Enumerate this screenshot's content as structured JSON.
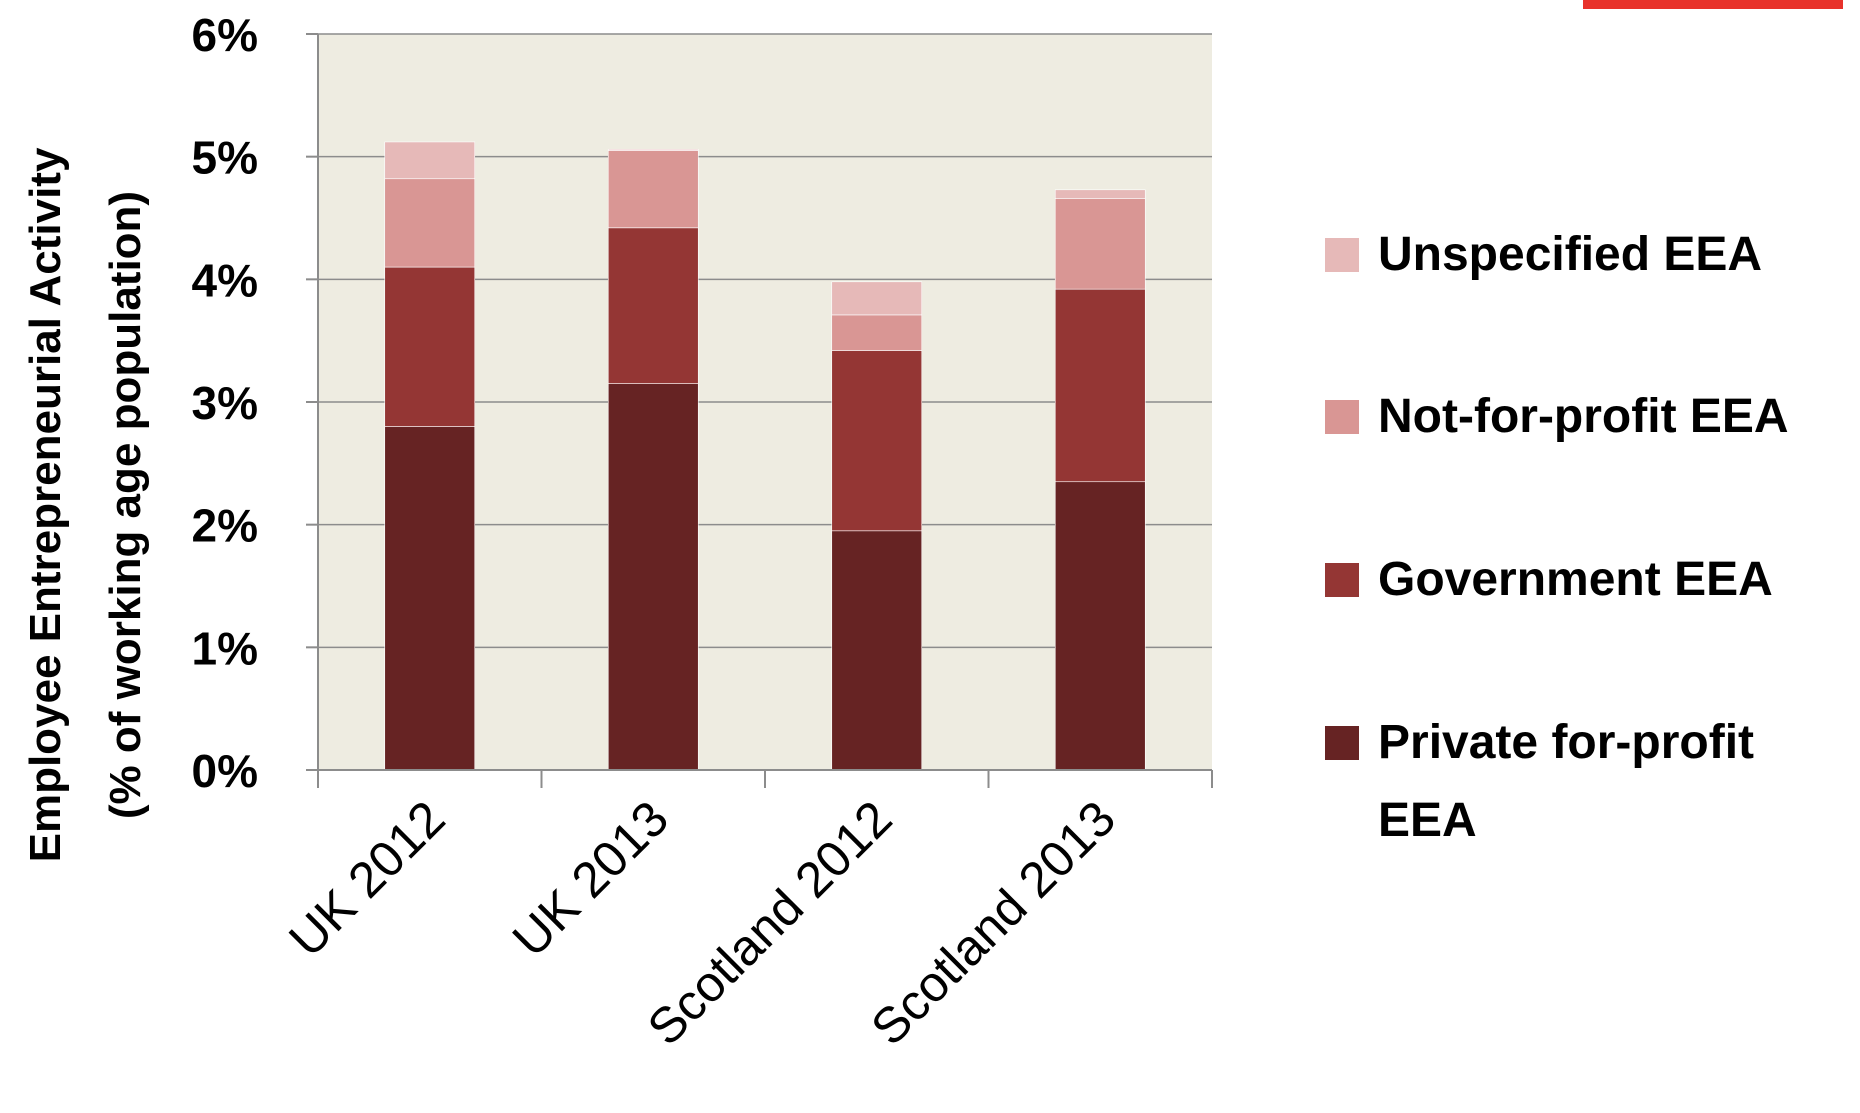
{
  "chart_data": {
    "type": "bar",
    "stacked": true,
    "categories": [
      "UK 2012",
      "UK 2013",
      "Scotland 2012",
      "Scotland 2013"
    ],
    "series": [
      {
        "name": "Private for-profit EEA",
        "color": "#662323",
        "values": [
          2.8,
          3.15,
          1.95,
          2.35
        ]
      },
      {
        "name": "Government EEA",
        "color": "#943634",
        "values": [
          1.3,
          1.27,
          1.47,
          1.57
        ]
      },
      {
        "name": "Not-for-profit EEA",
        "color": "#d99694",
        "values": [
          0.72,
          0.63,
          0.29,
          0.74
        ]
      },
      {
        "name": "Unspecified EEA",
        "color": "#e6b9b8",
        "values": [
          0.3,
          0.01,
          0.27,
          0.07
        ]
      }
    ],
    "ylabel_line1": "Employee Entrepreneurial Activity",
    "ylabel_line2": "(% of working age population)",
    "ylim": [
      0,
      6
    ],
    "yticks": [
      "0%",
      "1%",
      "2%",
      "3%",
      "4%",
      "5%",
      "6%"
    ],
    "grid": true,
    "legend_position": "right",
    "plot_background": "#eeece1",
    "accent_bar_color": "#e8322b"
  }
}
